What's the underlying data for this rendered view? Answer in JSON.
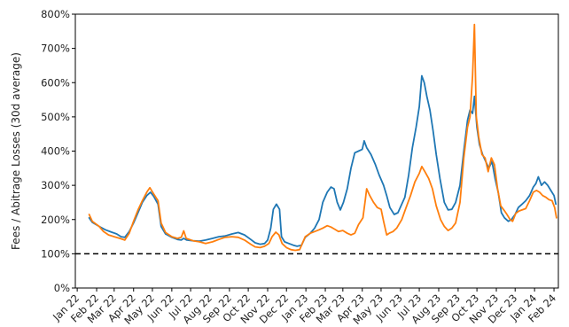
{
  "chart_data": {
    "type": "line",
    "ylabel": "Fees / Abitrage Losses (30d average)",
    "ylim": [
      0,
      800
    ],
    "xlim": [
      "2021-12-29",
      "2024-02-08"
    ],
    "yticks": [
      "0%",
      "100%",
      "200%",
      "300%",
      "400%",
      "500%",
      "600%",
      "700%",
      "800%"
    ],
    "xticks": [
      {
        "date": "2022-01-01",
        "label": "Jan 22"
      },
      {
        "date": "2022-02-01",
        "label": "Feb 22"
      },
      {
        "date": "2022-03-01",
        "label": "Mar 22"
      },
      {
        "date": "2022-04-01",
        "label": "Apr 22"
      },
      {
        "date": "2022-05-01",
        "label": "May 22"
      },
      {
        "date": "2022-06-01",
        "label": "Jun 22"
      },
      {
        "date": "2022-07-01",
        "label": "Jul 22"
      },
      {
        "date": "2022-08-01",
        "label": "Aug 22"
      },
      {
        "date": "2022-09-01",
        "label": "Sep 22"
      },
      {
        "date": "2022-10-01",
        "label": "Oct 22"
      },
      {
        "date": "2022-11-01",
        "label": "Nov 22"
      },
      {
        "date": "2022-12-01",
        "label": "Dec 22"
      },
      {
        "date": "2023-01-01",
        "label": "Jan 23"
      },
      {
        "date": "2023-02-01",
        "label": "Feb 23"
      },
      {
        "date": "2023-03-01",
        "label": "Mar 23"
      },
      {
        "date": "2023-04-01",
        "label": "Apr 23"
      },
      {
        "date": "2023-05-01",
        "label": "May 23"
      },
      {
        "date": "2023-06-01",
        "label": "Jun 23"
      },
      {
        "date": "2023-07-01",
        "label": "Jul 23"
      },
      {
        "date": "2023-08-01",
        "label": "Aug 23"
      },
      {
        "date": "2023-09-01",
        "label": "Sep 23"
      },
      {
        "date": "2023-10-01",
        "label": "Oct 23"
      },
      {
        "date": "2023-11-01",
        "label": "Nov 23"
      },
      {
        "date": "2023-12-01",
        "label": "Dec 23"
      },
      {
        "date": "2024-01-01",
        "label": "Jan 24"
      },
      {
        "date": "2024-02-01",
        "label": "Feb 24"
      }
    ],
    "reference_line": {
      "y": 100,
      "style": "dashed",
      "color": "#000000"
    },
    "grid": false,
    "series": [
      {
        "color": "#1f77b4",
        "points": [
          [
            "2022-01-20",
            205
          ],
          [
            "2022-01-25",
            192
          ],
          [
            "2022-02-05",
            180
          ],
          [
            "2022-02-15",
            170
          ],
          [
            "2022-02-25",
            163
          ],
          [
            "2022-03-05",
            158
          ],
          [
            "2022-03-12",
            150
          ],
          [
            "2022-03-18",
            148
          ],
          [
            "2022-03-25",
            165
          ],
          [
            "2022-04-01",
            190
          ],
          [
            "2022-04-08",
            220
          ],
          [
            "2022-04-15",
            250
          ],
          [
            "2022-04-22",
            270
          ],
          [
            "2022-04-28",
            280
          ],
          [
            "2022-05-03",
            268
          ],
          [
            "2022-05-10",
            245
          ],
          [
            "2022-05-15",
            180
          ],
          [
            "2022-05-22",
            158
          ],
          [
            "2022-06-01",
            148
          ],
          [
            "2022-06-10",
            142
          ],
          [
            "2022-06-16",
            140
          ],
          [
            "2022-06-20",
            145
          ],
          [
            "2022-06-25",
            140
          ],
          [
            "2022-07-05",
            138
          ],
          [
            "2022-07-15",
            137
          ],
          [
            "2022-07-25",
            140
          ],
          [
            "2022-08-05",
            145
          ],
          [
            "2022-08-15",
            150
          ],
          [
            "2022-08-25",
            152
          ],
          [
            "2022-09-05",
            158
          ],
          [
            "2022-09-15",
            162
          ],
          [
            "2022-09-25",
            155
          ],
          [
            "2022-10-05",
            142
          ],
          [
            "2022-10-12",
            132
          ],
          [
            "2022-10-20",
            128
          ],
          [
            "2022-10-27",
            130
          ],
          [
            "2022-11-01",
            140
          ],
          [
            "2022-11-06",
            175
          ],
          [
            "2022-11-10",
            230
          ],
          [
            "2022-11-15",
            245
          ],
          [
            "2022-11-20",
            230
          ],
          [
            "2022-11-23",
            150
          ],
          [
            "2022-11-28",
            135
          ],
          [
            "2022-12-05",
            130
          ],
          [
            "2022-12-12",
            125
          ],
          [
            "2022-12-18",
            122
          ],
          [
            "2022-12-25",
            125
          ],
          [
            "2022-12-31",
            148
          ],
          [
            "2023-01-08",
            160
          ],
          [
            "2023-01-15",
            175
          ],
          [
            "2023-01-22",
            200
          ],
          [
            "2023-01-28",
            250
          ],
          [
            "2023-02-04",
            280
          ],
          [
            "2023-02-10",
            295
          ],
          [
            "2023-02-15",
            290
          ],
          [
            "2023-02-20",
            250
          ],
          [
            "2023-02-25",
            228
          ],
          [
            "2023-03-02",
            250
          ],
          [
            "2023-03-08",
            290
          ],
          [
            "2023-03-14",
            350
          ],
          [
            "2023-03-20",
            395
          ],
          [
            "2023-03-26",
            400
          ],
          [
            "2023-04-01",
            405
          ],
          [
            "2023-04-04",
            430
          ],
          [
            "2023-04-08",
            410
          ],
          [
            "2023-04-15",
            390
          ],
          [
            "2023-04-22",
            360
          ],
          [
            "2023-04-28",
            330
          ],
          [
            "2023-05-05",
            300
          ],
          [
            "2023-05-10",
            270
          ],
          [
            "2023-05-15",
            235
          ],
          [
            "2023-05-22",
            215
          ],
          [
            "2023-05-28",
            220
          ],
          [
            "2023-06-03",
            245
          ],
          [
            "2023-06-08",
            265
          ],
          [
            "2023-06-14",
            330
          ],
          [
            "2023-06-20",
            410
          ],
          [
            "2023-06-26",
            470
          ],
          [
            "2023-07-01",
            530
          ],
          [
            "2023-07-05",
            620
          ],
          [
            "2023-07-09",
            600
          ],
          [
            "2023-07-13",
            560
          ],
          [
            "2023-07-18",
            520
          ],
          [
            "2023-07-23",
            460
          ],
          [
            "2023-07-28",
            390
          ],
          [
            "2023-08-03",
            320
          ],
          [
            "2023-08-10",
            250
          ],
          [
            "2023-08-16",
            228
          ],
          [
            "2023-08-22",
            230
          ],
          [
            "2023-08-28",
            250
          ],
          [
            "2023-09-04",
            300
          ],
          [
            "2023-09-10",
            400
          ],
          [
            "2023-09-16",
            490
          ],
          [
            "2023-09-20",
            520
          ],
          [
            "2023-09-24",
            510
          ],
          [
            "2023-09-27",
            560
          ],
          [
            "2023-10-01",
            470
          ],
          [
            "2023-10-05",
            420
          ],
          [
            "2023-10-10",
            390
          ],
          [
            "2023-10-15",
            370
          ],
          [
            "2023-10-20",
            350
          ],
          [
            "2023-10-25",
            370
          ],
          [
            "2023-10-30",
            320
          ],
          [
            "2023-11-04",
            280
          ],
          [
            "2023-11-09",
            220
          ],
          [
            "2023-11-14",
            205
          ],
          [
            "2023-11-20",
            195
          ],
          [
            "2023-11-25",
            200
          ],
          [
            "2023-12-01",
            215
          ],
          [
            "2023-12-06",
            235
          ],
          [
            "2023-12-12",
            245
          ],
          [
            "2023-12-18",
            255
          ],
          [
            "2023-12-24",
            270
          ],
          [
            "2023-12-30",
            295
          ],
          [
            "2024-01-03",
            305
          ],
          [
            "2024-01-07",
            325
          ],
          [
            "2024-01-12",
            300
          ],
          [
            "2024-01-17",
            310
          ],
          [
            "2024-01-22",
            300
          ],
          [
            "2024-01-27",
            285
          ],
          [
            "2024-02-01",
            270
          ],
          [
            "2024-02-04",
            245
          ]
        ]
      },
      {
        "color": "#ff7f0e",
        "points": [
          [
            "2022-01-20",
            215
          ],
          [
            "2022-01-25",
            195
          ],
          [
            "2022-02-05",
            180
          ],
          [
            "2022-02-12",
            165
          ],
          [
            "2022-02-20",
            155
          ],
          [
            "2022-03-01",
            150
          ],
          [
            "2022-03-10",
            145
          ],
          [
            "2022-03-18",
            140
          ],
          [
            "2022-03-25",
            160
          ],
          [
            "2022-04-01",
            195
          ],
          [
            "2022-04-08",
            228
          ],
          [
            "2022-04-15",
            255
          ],
          [
            "2022-04-22",
            280
          ],
          [
            "2022-04-27",
            293
          ],
          [
            "2022-05-03",
            275
          ],
          [
            "2022-05-10",
            255
          ],
          [
            "2022-05-15",
            190
          ],
          [
            "2022-05-22",
            162
          ],
          [
            "2022-06-01",
            150
          ],
          [
            "2022-06-10",
            145
          ],
          [
            "2022-06-16",
            148
          ],
          [
            "2022-06-20",
            167
          ],
          [
            "2022-06-24",
            145
          ],
          [
            "2022-07-05",
            138
          ],
          [
            "2022-07-15",
            135
          ],
          [
            "2022-07-25",
            130
          ],
          [
            "2022-08-05",
            135
          ],
          [
            "2022-08-15",
            142
          ],
          [
            "2022-08-25",
            148
          ],
          [
            "2022-09-05",
            150
          ],
          [
            "2022-09-15",
            148
          ],
          [
            "2022-09-25",
            140
          ],
          [
            "2022-10-05",
            128
          ],
          [
            "2022-10-12",
            120
          ],
          [
            "2022-10-20",
            118
          ],
          [
            "2022-10-27",
            122
          ],
          [
            "2022-11-03",
            130
          ],
          [
            "2022-11-08",
            150
          ],
          [
            "2022-11-14",
            163
          ],
          [
            "2022-11-19",
            155
          ],
          [
            "2022-11-24",
            130
          ],
          [
            "2022-12-01",
            118
          ],
          [
            "2022-12-08",
            112
          ],
          [
            "2022-12-15",
            110
          ],
          [
            "2022-12-22",
            112
          ],
          [
            "2022-12-31",
            150
          ],
          [
            "2023-01-08",
            160
          ],
          [
            "2023-01-15",
            165
          ],
          [
            "2023-01-22",
            170
          ],
          [
            "2023-01-28",
            175
          ],
          [
            "2023-02-04",
            182
          ],
          [
            "2023-02-10",
            178
          ],
          [
            "2023-02-16",
            172
          ],
          [
            "2023-02-22",
            165
          ],
          [
            "2023-03-01",
            168
          ],
          [
            "2023-03-08",
            160
          ],
          [
            "2023-03-14",
            155
          ],
          [
            "2023-03-20",
            160
          ],
          [
            "2023-03-26",
            185
          ],
          [
            "2023-04-02",
            205
          ],
          [
            "2023-04-06",
            260
          ],
          [
            "2023-04-08",
            290
          ],
          [
            "2023-04-13",
            270
          ],
          [
            "2023-04-19",
            250
          ],
          [
            "2023-04-25",
            235
          ],
          [
            "2023-05-01",
            230
          ],
          [
            "2023-05-05",
            195
          ],
          [
            "2023-05-10",
            155
          ],
          [
            "2023-05-14",
            160
          ],
          [
            "2023-05-20",
            165
          ],
          [
            "2023-05-26",
            175
          ],
          [
            "2023-06-03",
            200
          ],
          [
            "2023-06-10",
            235
          ],
          [
            "2023-06-17",
            270
          ],
          [
            "2023-06-24",
            310
          ],
          [
            "2023-07-01",
            335
          ],
          [
            "2023-07-05",
            355
          ],
          [
            "2023-07-10",
            340
          ],
          [
            "2023-07-16",
            320
          ],
          [
            "2023-07-22",
            290
          ],
          [
            "2023-07-28",
            240
          ],
          [
            "2023-08-04",
            200
          ],
          [
            "2023-08-10",
            180
          ],
          [
            "2023-08-16",
            168
          ],
          [
            "2023-08-22",
            175
          ],
          [
            "2023-08-28",
            190
          ],
          [
            "2023-09-04",
            250
          ],
          [
            "2023-09-10",
            380
          ],
          [
            "2023-09-16",
            470
          ],
          [
            "2023-09-20",
            500
          ],
          [
            "2023-09-24",
            620
          ],
          [
            "2023-09-27",
            770
          ],
          [
            "2023-09-30",
            500
          ],
          [
            "2023-10-04",
            440
          ],
          [
            "2023-10-09",
            390
          ],
          [
            "2023-10-14",
            380
          ],
          [
            "2023-10-19",
            340
          ],
          [
            "2023-10-24",
            380
          ],
          [
            "2023-10-29",
            360
          ],
          [
            "2023-11-03",
            290
          ],
          [
            "2023-11-08",
            240
          ],
          [
            "2023-11-13",
            228
          ],
          [
            "2023-11-18",
            215
          ],
          [
            "2023-11-23",
            200
          ],
          [
            "2023-11-27",
            195
          ],
          [
            "2023-12-02",
            218
          ],
          [
            "2023-12-07",
            225
          ],
          [
            "2023-12-12",
            228
          ],
          [
            "2023-12-18",
            232
          ],
          [
            "2023-12-24",
            255
          ],
          [
            "2023-12-30",
            280
          ],
          [
            "2024-01-04",
            285
          ],
          [
            "2024-01-09",
            280
          ],
          [
            "2024-01-14",
            270
          ],
          [
            "2024-01-19",
            265
          ],
          [
            "2024-01-24",
            258
          ],
          [
            "2024-01-29",
            255
          ],
          [
            "2024-02-02",
            235
          ],
          [
            "2024-02-05",
            205
          ]
        ]
      }
    ]
  }
}
